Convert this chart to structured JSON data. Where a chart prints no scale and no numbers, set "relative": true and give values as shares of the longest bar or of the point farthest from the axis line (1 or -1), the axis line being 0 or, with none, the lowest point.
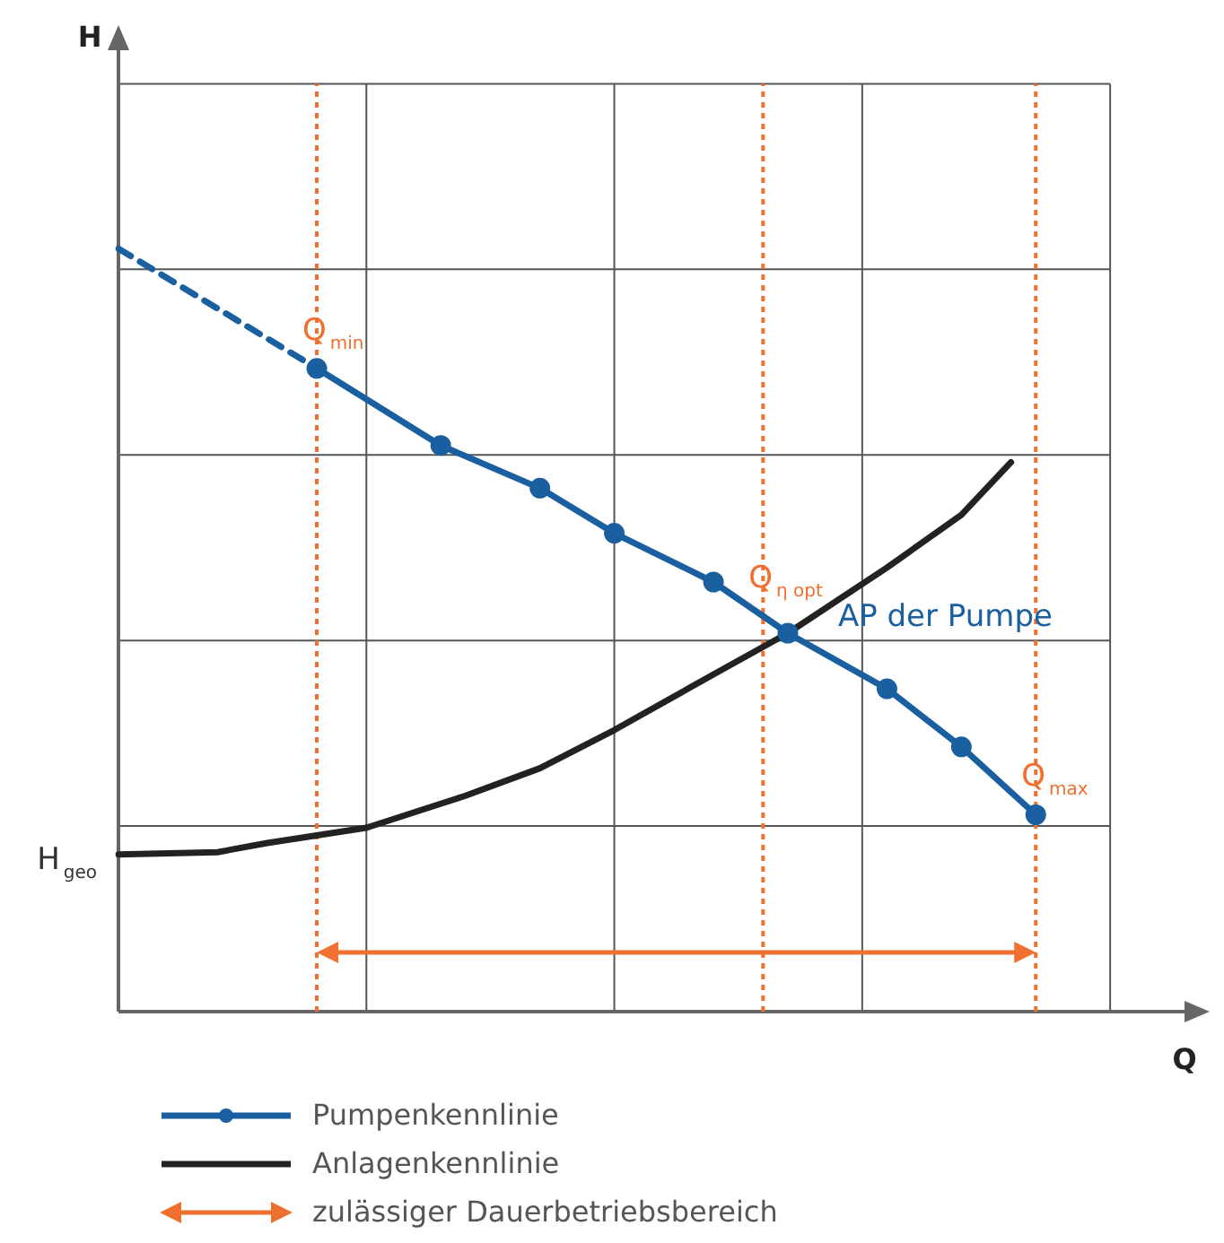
{
  "chart_data": {
    "type": "line",
    "relative": true,
    "xlabel": "Q",
    "grid": true,
    "legend": "bottom",
    "categories": [
      null,
      null,
      null,
      null,
      null,
      null,
      null,
      null,
      null,
      null,
      null,
      null,
      null,
      null,
      null,
      null,
      null,
      null,
      null,
      null,
      null,
      null,
      null,
      null,
      null,
      null,
      null,
      null,
      null,
      null,
      null,
      null,
      null,
      null,
      null,
      null,
      null,
      null,
      null,
      null,
      null,
      null,
      null,
      null
    ],
    "series": [
      {
        "name": "Pumpenkennlinie",
        "color": "#1a5fa0",
        "marker": "circle",
        "line_style": "solid",
        "values": [
          null,
          null,
          null,
          null,
          null,
          null,
          null,
          null,
          0.843,
          null,
          null,
          null,
          null,
          0.742,
          null,
          null,
          null,
          0.686,
          null,
          null,
          0.627,
          null,
          null,
          null,
          0.563,
          null,
          null,
          0.496,
          null,
          null,
          null,
          0.423,
          null,
          null,
          0.347,
          null,
          null,
          0.258,
          null,
          null,
          null,
          null,
          null,
          null
        ]
      },
      {
        "color": "#1a5fa0",
        "marker": "none",
        "line_style": "dashed",
        "values": [
          1.0,
          null,
          null,
          null,
          null,
          null,
          null,
          null,
          0.843,
          null,
          null,
          null,
          null,
          null,
          null,
          null,
          null,
          null,
          null,
          null,
          null,
          null,
          null,
          null,
          null,
          null,
          null,
          null,
          null,
          null,
          null,
          null,
          null,
          null,
          null,
          null,
          null,
          null,
          null,
          null,
          null,
          null,
          null,
          null
        ]
      },
      {
        "name": "Anlagenkennlinie",
        "color": "#222222",
        "marker": "none",
        "line_style": "solid",
        "values": [
          0.206,
          null,
          null,
          null,
          0.209,
          null,
          0.221,
          null,
          null,
          null,
          0.241,
          null,
          null,
          null,
          0.283,
          null,
          null,
          0.319,
          null,
          null,
          0.369,
          null,
          null,
          null,
          0.442,
          null,
          null,
          0.496,
          null,
          null,
          null,
          0.582,
          null,
          null,
          0.651,
          null,
          0.72,
          null,
          null,
          null,
          null,
          null,
          null,
          null
        ]
      }
    ],
    "annotations": [
      "Q$_{min}$",
      "Q$_{η opt}$",
      "Q$_{max}$",
      "AP der Pumpe",
      "H$_{geo}$",
      "zulässiger Dauerbetriebsbereich",
      "H"
    ]
  }
}
